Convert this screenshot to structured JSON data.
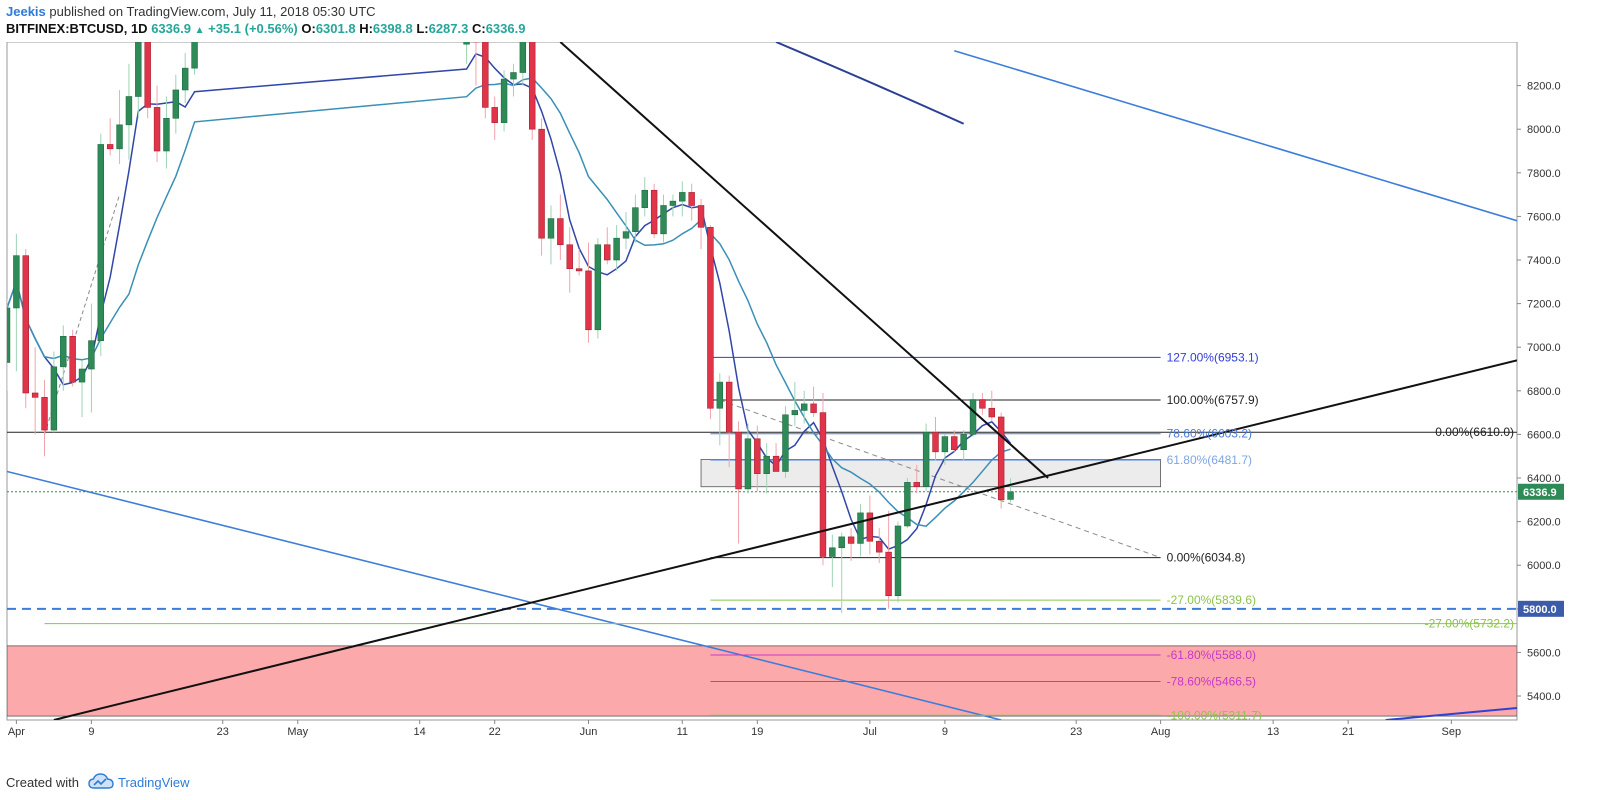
{
  "header": {
    "author": "Jeekis",
    "published_text": "published on TradingView.com, July 11, 2018 05:30 UTC",
    "symbol": "BITFINEX:BTCUSD, 1D",
    "last": "6336.9",
    "change": "+35.1 (+0.56%)",
    "open_label": "O:",
    "open": "6301.8",
    "high_label": "H:",
    "high": "6398.8",
    "low_label": "L:",
    "low": "6287.3",
    "close_label": "C:",
    "close": "6336.9"
  },
  "footer": {
    "created_with": "Created with",
    "brand": "TradingView"
  },
  "colors": {
    "bull": "#2e8b57",
    "bear": "#e0344a",
    "ema_fast": "#3046a8",
    "ema_slow": "#3a8fb7",
    "trend_blue": "#3c7ddc",
    "support_zone": "#fca9ab",
    "fib_blue": "#2f3fd6",
    "fib_green": "#8bc34a",
    "fib_magenta": "#c837c8"
  },
  "chart_data": {
    "type": "candlestick",
    "y_axis": {
      "ticks": [
        5400,
        5600,
        5800,
        6000,
        6200,
        6400,
        6600,
        6800,
        7000,
        7200,
        7400,
        7600,
        7800,
        8000,
        8200
      ],
      "range": [
        5290,
        8400
      ]
    },
    "x_axis": {
      "range": [
        "2018-03-31",
        "2018-09-08"
      ],
      "ticks": [
        {
          "label": "Apr",
          "date": "2018-04-01"
        },
        {
          "label": "9",
          "date": "2018-04-09"
        },
        {
          "label": "23",
          "date": "2018-04-23"
        },
        {
          "label": "May",
          "date": "2018-05-01"
        },
        {
          "label": "14",
          "date": "2018-05-14"
        },
        {
          "label": "22",
          "date": "2018-05-22"
        },
        {
          "label": "Jun",
          "date": "2018-06-01"
        },
        {
          "label": "11",
          "date": "2018-06-11"
        },
        {
          "label": "19",
          "date": "2018-06-19"
        },
        {
          "label": "Jul",
          "date": "2018-07-01"
        },
        {
          "label": "9",
          "date": "2018-07-09"
        },
        {
          "label": "23",
          "date": "2018-07-23"
        },
        {
          "label": "Aug",
          "date": "2018-08-01"
        },
        {
          "label": "13",
          "date": "2018-08-13"
        },
        {
          "label": "21",
          "date": "2018-08-21"
        },
        {
          "label": "Sep",
          "date": "2018-09-01"
        }
      ]
    },
    "price_badges": [
      {
        "label": "6336.9",
        "value": 6336.9,
        "color": "#2e8b57"
      },
      {
        "label": "5800.0",
        "value": 5800.0,
        "color": "#3c5ba8"
      }
    ],
    "candles": [
      {
        "d": "2018-03-31",
        "o": 6930,
        "h": 7220,
        "l": 6800,
        "c": 7180
      },
      {
        "d": "2018-04-01",
        "o": 7180,
        "h": 7520,
        "l": 6890,
        "c": 7420
      },
      {
        "d": "2018-04-02",
        "o": 7420,
        "h": 7450,
        "l": 6720,
        "c": 6790
      },
      {
        "d": "2018-04-03",
        "o": 6790,
        "h": 7000,
        "l": 6600,
        "c": 6770
      },
      {
        "d": "2018-04-04",
        "o": 6770,
        "h": 6850,
        "l": 6500,
        "c": 6620
      },
      {
        "d": "2018-04-05",
        "o": 6620,
        "h": 6980,
        "l": 6610,
        "c": 6910
      },
      {
        "d": "2018-04-06",
        "o": 6910,
        "h": 7100,
        "l": 6800,
        "c": 7050
      },
      {
        "d": "2018-04-07",
        "o": 7050,
        "h": 7080,
        "l": 6820,
        "c": 6840
      },
      {
        "d": "2018-04-08",
        "o": 6840,
        "h": 6940,
        "l": 6680,
        "c": 6900
      },
      {
        "d": "2018-04-09",
        "o": 6900,
        "h": 7200,
        "l": 6700,
        "c": 7030
      },
      {
        "d": "2018-04-10",
        "o": 7030,
        "h": 7980,
        "l": 6960,
        "c": 7930
      },
      {
        "d": "2018-04-11",
        "o": 7930,
        "h": 8050,
        "l": 7880,
        "c": 7910
      },
      {
        "d": "2018-04-12",
        "o": 7910,
        "h": 8180,
        "l": 7840,
        "c": 8020
      },
      {
        "d": "2018-04-13",
        "o": 8020,
        "h": 8300,
        "l": 7860,
        "c": 8150
      },
      {
        "d": "2018-04-14",
        "o": 8150,
        "h": 8450,
        "l": 8050,
        "c": 8400
      },
      {
        "d": "2018-04-15",
        "o": 8400,
        "h": 8500,
        "l": 8050,
        "c": 8100
      },
      {
        "d": "2018-04-16",
        "o": 8100,
        "h": 8200,
        "l": 7850,
        "c": 7900
      },
      {
        "d": "2018-04-17",
        "o": 7900,
        "h": 8150,
        "l": 7820,
        "c": 8050
      },
      {
        "d": "2018-04-18",
        "o": 8050,
        "h": 8250,
        "l": 7980,
        "c": 8180
      },
      {
        "d": "2018-04-19",
        "o": 8180,
        "h": 8350,
        "l": 8120,
        "c": 8280
      },
      {
        "d": "2018-04-20",
        "o": 8280,
        "h": 8500,
        "l": 8250,
        "c": 8450
      },
      {
        "d": "2018-05-19",
        "o": 8390,
        "h": 8470,
        "l": 8300,
        "c": 8420
      },
      {
        "d": "2018-05-20",
        "o": 8420,
        "h": 8480,
        "l": 8200,
        "c": 8400
      },
      {
        "d": "2018-05-21",
        "o": 8400,
        "h": 8450,
        "l": 8050,
        "c": 8100
      },
      {
        "d": "2018-05-22",
        "o": 8100,
        "h": 8150,
        "l": 7950,
        "c": 8030
      },
      {
        "d": "2018-05-23",
        "o": 8030,
        "h": 8270,
        "l": 7990,
        "c": 8230
      },
      {
        "d": "2018-05-24",
        "o": 8230,
        "h": 8300,
        "l": 8150,
        "c": 8260
      },
      {
        "d": "2018-05-25",
        "o": 8260,
        "h": 8480,
        "l": 8200,
        "c": 8420
      },
      {
        "d": "2018-05-26",
        "o": 8420,
        "h": 8460,
        "l": 7950,
        "c": 8000
      },
      {
        "d": "2018-05-27",
        "o": 8000,
        "h": 8050,
        "l": 7420,
        "c": 7500
      },
      {
        "d": "2018-05-28",
        "o": 7500,
        "h": 7650,
        "l": 7380,
        "c": 7590
      },
      {
        "d": "2018-05-29",
        "o": 7590,
        "h": 7700,
        "l": 7400,
        "c": 7470
      },
      {
        "d": "2018-05-30",
        "o": 7470,
        "h": 7550,
        "l": 7250,
        "c": 7360
      },
      {
        "d": "2018-05-31",
        "o": 7360,
        "h": 7450,
        "l": 7330,
        "c": 7350
      },
      {
        "d": "2018-06-01",
        "o": 7350,
        "h": 7480,
        "l": 7020,
        "c": 7080
      },
      {
        "d": "2018-06-02",
        "o": 7080,
        "h": 7500,
        "l": 7040,
        "c": 7470
      },
      {
        "d": "2018-06-03",
        "o": 7470,
        "h": 7550,
        "l": 7380,
        "c": 7400
      },
      {
        "d": "2018-06-04",
        "o": 7400,
        "h": 7560,
        "l": 7350,
        "c": 7500
      },
      {
        "d": "2018-06-05",
        "o": 7500,
        "h": 7620,
        "l": 7450,
        "c": 7530
      },
      {
        "d": "2018-06-06",
        "o": 7530,
        "h": 7700,
        "l": 7480,
        "c": 7640
      },
      {
        "d": "2018-06-07",
        "o": 7640,
        "h": 7780,
        "l": 7600,
        "c": 7720
      },
      {
        "d": "2018-06-08",
        "o": 7720,
        "h": 7750,
        "l": 7500,
        "c": 7520
      },
      {
        "d": "2018-06-09",
        "o": 7520,
        "h": 7700,
        "l": 7480,
        "c": 7650
      },
      {
        "d": "2018-06-10",
        "o": 7650,
        "h": 7700,
        "l": 7600,
        "c": 7670
      },
      {
        "d": "2018-06-11",
        "o": 7670,
        "h": 7760,
        "l": 7600,
        "c": 7710
      },
      {
        "d": "2018-06-12",
        "o": 7710,
        "h": 7750,
        "l": 7580,
        "c": 7650
      },
      {
        "d": "2018-06-13",
        "o": 7650,
        "h": 7680,
        "l": 7450,
        "c": 7550
      },
      {
        "d": "2018-06-14",
        "o": 7550,
        "h": 7560,
        "l": 6670,
        "c": 6720
      },
      {
        "d": "2018-06-15",
        "o": 6720,
        "h": 6880,
        "l": 6550,
        "c": 6840
      },
      {
        "d": "2018-06-16",
        "o": 6840,
        "h": 6870,
        "l": 6450,
        "c": 6610
      },
      {
        "d": "2018-06-17",
        "o": 6610,
        "h": 6660,
        "l": 6100,
        "c": 6350
      },
      {
        "d": "2018-06-18",
        "o": 6350,
        "h": 6650,
        "l": 6330,
        "c": 6580
      },
      {
        "d": "2018-06-19",
        "o": 6580,
        "h": 6640,
        "l": 6340,
        "c": 6420
      },
      {
        "d": "2018-06-20",
        "o": 6420,
        "h": 6560,
        "l": 6330,
        "c": 6500
      },
      {
        "d": "2018-06-21",
        "o": 6500,
        "h": 6560,
        "l": 6440,
        "c": 6430
      },
      {
        "d": "2018-06-22",
        "o": 6430,
        "h": 6730,
        "l": 6400,
        "c": 6690
      },
      {
        "d": "2018-06-23",
        "o": 6690,
        "h": 6840,
        "l": 6640,
        "c": 6710
      },
      {
        "d": "2018-06-24",
        "o": 6710,
        "h": 6800,
        "l": 6650,
        "c": 6740
      },
      {
        "d": "2018-06-25",
        "o": 6740,
        "h": 6820,
        "l": 6680,
        "c": 6700
      },
      {
        "d": "2018-06-26",
        "o": 6700,
        "h": 6790,
        "l": 6000,
        "c": 6040
      },
      {
        "d": "2018-06-27",
        "o": 6040,
        "h": 6140,
        "l": 5900,
        "c": 6080
      },
      {
        "d": "2018-06-28",
        "o": 6080,
        "h": 6150,
        "l": 5780,
        "c": 6130
      },
      {
        "d": "2018-06-29",
        "o": 6130,
        "h": 6170,
        "l": 6020,
        "c": 6100
      },
      {
        "d": "2018-06-30",
        "o": 6100,
        "h": 6280,
        "l": 6040,
        "c": 6240
      },
      {
        "d": "2018-07-01",
        "o": 6240,
        "h": 6320,
        "l": 6050,
        "c": 6110
      },
      {
        "d": "2018-07-02",
        "o": 6110,
        "h": 6170,
        "l": 6010,
        "c": 6060
      },
      {
        "d": "2018-07-03",
        "o": 6060,
        "h": 6250,
        "l": 5800,
        "c": 5860
      },
      {
        "d": "2018-07-04",
        "o": 5860,
        "h": 6200,
        "l": 5830,
        "c": 6180
      },
      {
        "d": "2018-07-05",
        "o": 6180,
        "h": 6400,
        "l": 6170,
        "c": 6380
      },
      {
        "d": "2018-07-06",
        "o": 6380,
        "h": 6460,
        "l": 6330,
        "c": 6360
      },
      {
        "d": "2018-07-07",
        "o": 6360,
        "h": 6650,
        "l": 6340,
        "c": 6610
      },
      {
        "d": "2018-07-08",
        "o": 6610,
        "h": 6680,
        "l": 6480,
        "c": 6520
      },
      {
        "d": "2018-07-09",
        "o": 6520,
        "h": 6600,
        "l": 6460,
        "c": 6590
      },
      {
        "d": "2018-07-10",
        "o": 6590,
        "h": 6620,
        "l": 6520,
        "c": 6530
      },
      {
        "d": "2018-07-11",
        "o": 6530,
        "h": 6620,
        "l": 6480,
        "c": 6600
      },
      {
        "d": "2018-07-12",
        "o": 6600,
        "h": 6790,
        "l": 6590,
        "c": 6760
      },
      {
        "d": "2018-07-13",
        "o": 6760,
        "h": 6790,
        "l": 6690,
        "c": 6720
      },
      {
        "d": "2018-07-14",
        "o": 6720,
        "h": 6800,
        "l": 6660,
        "c": 6680
      },
      {
        "d": "2018-07-15",
        "o": 6680,
        "h": 6700,
        "l": 6260,
        "c": 6300
      },
      {
        "d": "2018-07-16",
        "o": 6301.8,
        "h": 6398.8,
        "l": 6287.3,
        "c": 6336.9
      }
    ],
    "fib_upper": [
      {
        "label": "127.00%(6953.1)",
        "value": 6953.1,
        "color": "#2f3fd6"
      },
      {
        "label": "100.00%(6757.9)",
        "value": 6757.9,
        "color": "#222222"
      },
      {
        "label": "78.60%(6603.2)",
        "value": 6603.2,
        "color": "#4a7bd6"
      },
      {
        "label": "61.80%(6481.7)",
        "value": 6481.7,
        "color": "#7ea6e0"
      },
      {
        "label": "0.00%(6034.8)",
        "value": 6034.8,
        "color": "#222222"
      },
      {
        "label": "-27.00%(5839.6)",
        "value": 5839.6,
        "color": "#8bc34a"
      },
      {
        "label": "-61.80%(5588.0)",
        "value": 5588.0,
        "color": "#c837c8"
      },
      {
        "label": "-78.60%(5466.5)",
        "value": 5466.5,
        "color": "#c837c8"
      },
      {
        "label": "-100.00%(5311.7)",
        "value": 5311.7,
        "color": "#8bc34a"
      }
    ],
    "fib_lower": [
      {
        "label": "0.00%(6610.0)",
        "value": 6610.0,
        "color": "#222222"
      },
      {
        "label": "-27.00%(5732.2)",
        "value": 5732.2,
        "color": "#8bc34a"
      }
    ]
  }
}
